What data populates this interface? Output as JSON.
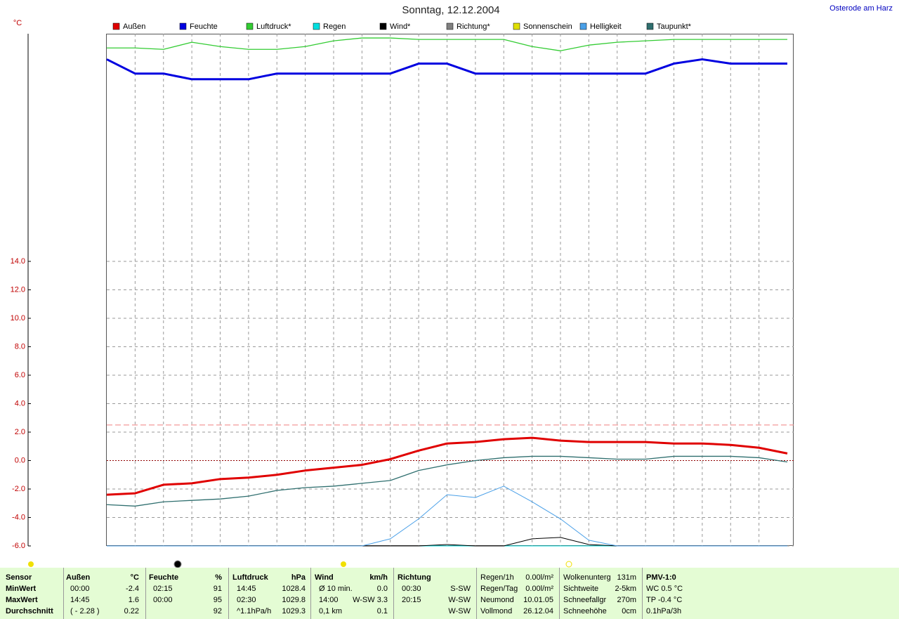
{
  "chart_data": {
    "type": "line",
    "title": "Sonntag, 12.12.2004",
    "location": "Osterode am Harz",
    "y_label": "°C",
    "categories": [
      null,
      null,
      null,
      null,
      null,
      null,
      null,
      null,
      null,
      null,
      null,
      null,
      null,
      null,
      null,
      null,
      null,
      null,
      null,
      null,
      null,
      null,
      null,
      null,
      null
    ],
    "ylim": [
      -6,
      30
    ],
    "yticks": [
      {
        "value": -6,
        "label": "-6.0"
      },
      {
        "value": -4,
        "label": "-4.0"
      },
      {
        "value": -2,
        "label": "-2.0"
      },
      {
        "value": 0,
        "label": "0.0"
      },
      {
        "value": 2,
        "label": "2.0"
      },
      {
        "value": 4,
        "label": "4.0"
      },
      {
        "value": 6,
        "label": "6.0"
      },
      {
        "value": 8,
        "label": "8.0"
      },
      {
        "value": 10,
        "label": "10.0"
      },
      {
        "value": 12,
        "label": "12.0"
      },
      {
        "value": 14,
        "label": "14.0"
      }
    ],
    "grid": true,
    "reference_line": 2.5,
    "series": [
      {
        "name": "Außen",
        "color": "#e00000",
        "width": 3,
        "values": [
          -2.4,
          -2.3,
          -1.7,
          -1.6,
          -1.3,
          -1.2,
          -1.0,
          -0.7,
          -0.5,
          -0.3,
          0.1,
          0.7,
          1.2,
          1.3,
          1.5,
          1.6,
          1.4,
          1.3,
          1.3,
          1.3,
          1.2,
          1.2,
          1.1,
          0.9,
          0.5
        ]
      },
      {
        "name": "Feuchte",
        "color": "#0000e0",
        "width": 3,
        "values": [
          28.2,
          27.2,
          27.2,
          26.8,
          26.8,
          26.8,
          27.2,
          27.2,
          27.2,
          27.2,
          27.2,
          27.9,
          27.9,
          27.2,
          27.2,
          27.2,
          27.2,
          27.2,
          27.2,
          27.2,
          27.9,
          28.2,
          27.9,
          27.9,
          27.9
        ]
      },
      {
        "name": "Luftdruck*",
        "color": "#33cc33",
        "width": 1.3,
        "values": [
          29.0,
          29.0,
          28.9,
          29.4,
          29.1,
          28.9,
          28.9,
          29.1,
          29.5,
          29.7,
          29.7,
          29.6,
          29.6,
          29.6,
          29.6,
          29.1,
          28.8,
          29.2,
          29.4,
          29.5,
          29.6,
          29.6,
          29.6,
          29.6,
          29.6
        ]
      },
      {
        "name": "Regen",
        "color": "#00e0e0",
        "width": 1,
        "values": [
          -6,
          -6,
          -6,
          -6,
          -6,
          -6,
          -6,
          -6,
          -6,
          -6,
          -6,
          -6,
          -6,
          -6,
          -6,
          -6,
          -6,
          -6,
          -6,
          -6,
          -6,
          -6,
          -6,
          -6,
          -6
        ]
      },
      {
        "name": "Wind*",
        "color": "#000000",
        "width": 1,
        "values": [
          -6,
          -6,
          -6,
          -6,
          -6,
          -6,
          -6,
          -6,
          -6,
          -6,
          -6,
          -6,
          -5.9,
          -6,
          -6,
          -5.5,
          -5.4,
          -5.9,
          -6,
          -6,
          -6,
          -6,
          -6,
          -6,
          -6
        ]
      },
      {
        "name": "Richtung*",
        "color": "#808080",
        "width": 1,
        "values": [
          null,
          null,
          null,
          null,
          null,
          null,
          null,
          null,
          null,
          null,
          null,
          null,
          null,
          null,
          null,
          null,
          null,
          null,
          null,
          null,
          null,
          null,
          null,
          null,
          null
        ]
      },
      {
        "name": "Sonnenschein",
        "color": "#e0e000",
        "width": 1,
        "values": [
          null,
          null,
          null,
          null,
          null,
          null,
          null,
          null,
          null,
          null,
          null,
          null,
          null,
          null,
          null,
          null,
          null,
          null,
          null,
          null,
          null,
          null,
          null,
          null,
          null
        ]
      },
      {
        "name": "Helligkeit",
        "color": "#4aa0e8",
        "width": 1,
        "values": [
          -6,
          -6,
          -6,
          -6,
          -6,
          -6,
          -6,
          -6,
          -6,
          -6,
          -5.5,
          -4.1,
          -2.4,
          -2.6,
          -1.8,
          -2.9,
          -4.1,
          -5.6,
          -6,
          -6,
          -6,
          -6,
          -6,
          -6,
          -6
        ]
      },
      {
        "name": "Taupunkt*",
        "color": "#2f6f6f",
        "width": 1.3,
        "values": [
          -3.1,
          -3.2,
          -2.9,
          -2.8,
          -2.7,
          -2.5,
          -2.1,
          -1.9,
          -1.8,
          -1.6,
          -1.4,
          -0.7,
          -0.3,
          0.0,
          0.2,
          0.3,
          0.3,
          0.2,
          0.1,
          0.1,
          0.3,
          0.3,
          0.3,
          0.2,
          -0.1
        ]
      }
    ]
  },
  "table": {
    "columns": [
      {
        "header": [
          "Sensor"
        ],
        "rows": [
          [
            "MinWert"
          ],
          [
            "MaxWert"
          ],
          [
            "Durchschnitt"
          ]
        ]
      },
      {
        "header": [
          "Außen",
          "°C"
        ],
        "rows": [
          [
            "00:00",
            "-2.4"
          ],
          [
            "14:45",
            "1.6"
          ],
          [
            "( - 2.28 )",
            "0.22"
          ]
        ]
      },
      {
        "header": [
          "Feuchte",
          "%"
        ],
        "rows": [
          [
            "02:15",
            "91"
          ],
          [
            "00:00",
            "95"
          ],
          [
            null,
            "92"
          ]
        ]
      },
      {
        "header": [
          "Luftdruck",
          "hPa"
        ],
        "rows": [
          [
            "14:45",
            "1028.4"
          ],
          [
            "02:30",
            "1029.8"
          ],
          [
            "^1.1hPa/h",
            "1029.3"
          ]
        ]
      },
      {
        "header": [
          "Wind",
          "km/h"
        ],
        "rows": [
          [
            "Ø 10 min.",
            "0.0"
          ],
          [
            "14:00",
            "W-SW 3.3"
          ],
          [
            "0,1 km",
            "0.1"
          ]
        ]
      },
      {
        "header": [
          "Richtung"
        ],
        "rows": [
          [
            "00:30",
            "S-SW"
          ],
          [
            "20:15",
            "W-SW"
          ],
          [
            null,
            "W-SW"
          ]
        ]
      },
      {
        "rows": [
          [
            "Regen/1h",
            "0.00l/m²"
          ],
          [
            "Regen/Tag",
            "0.00l/m²"
          ],
          [
            "Neumond",
            "10.01.05"
          ],
          [
            "Vollmond",
            "26.12.04"
          ]
        ]
      },
      {
        "rows": [
          [
            "Wolkenunterg",
            "131m"
          ],
          [
            "Sichtweite",
            "2-5km"
          ],
          [
            "Schneefallgr",
            "270m"
          ],
          [
            "Schneehöhe",
            "0cm"
          ]
        ]
      },
      {
        "rows": [
          [
            "PMV-1:0"
          ],
          [
            "WC 0.5 °C"
          ],
          [
            "TP -0.4 °C"
          ],
          [
            "0.1hPa/3h"
          ]
        ]
      }
    ]
  }
}
